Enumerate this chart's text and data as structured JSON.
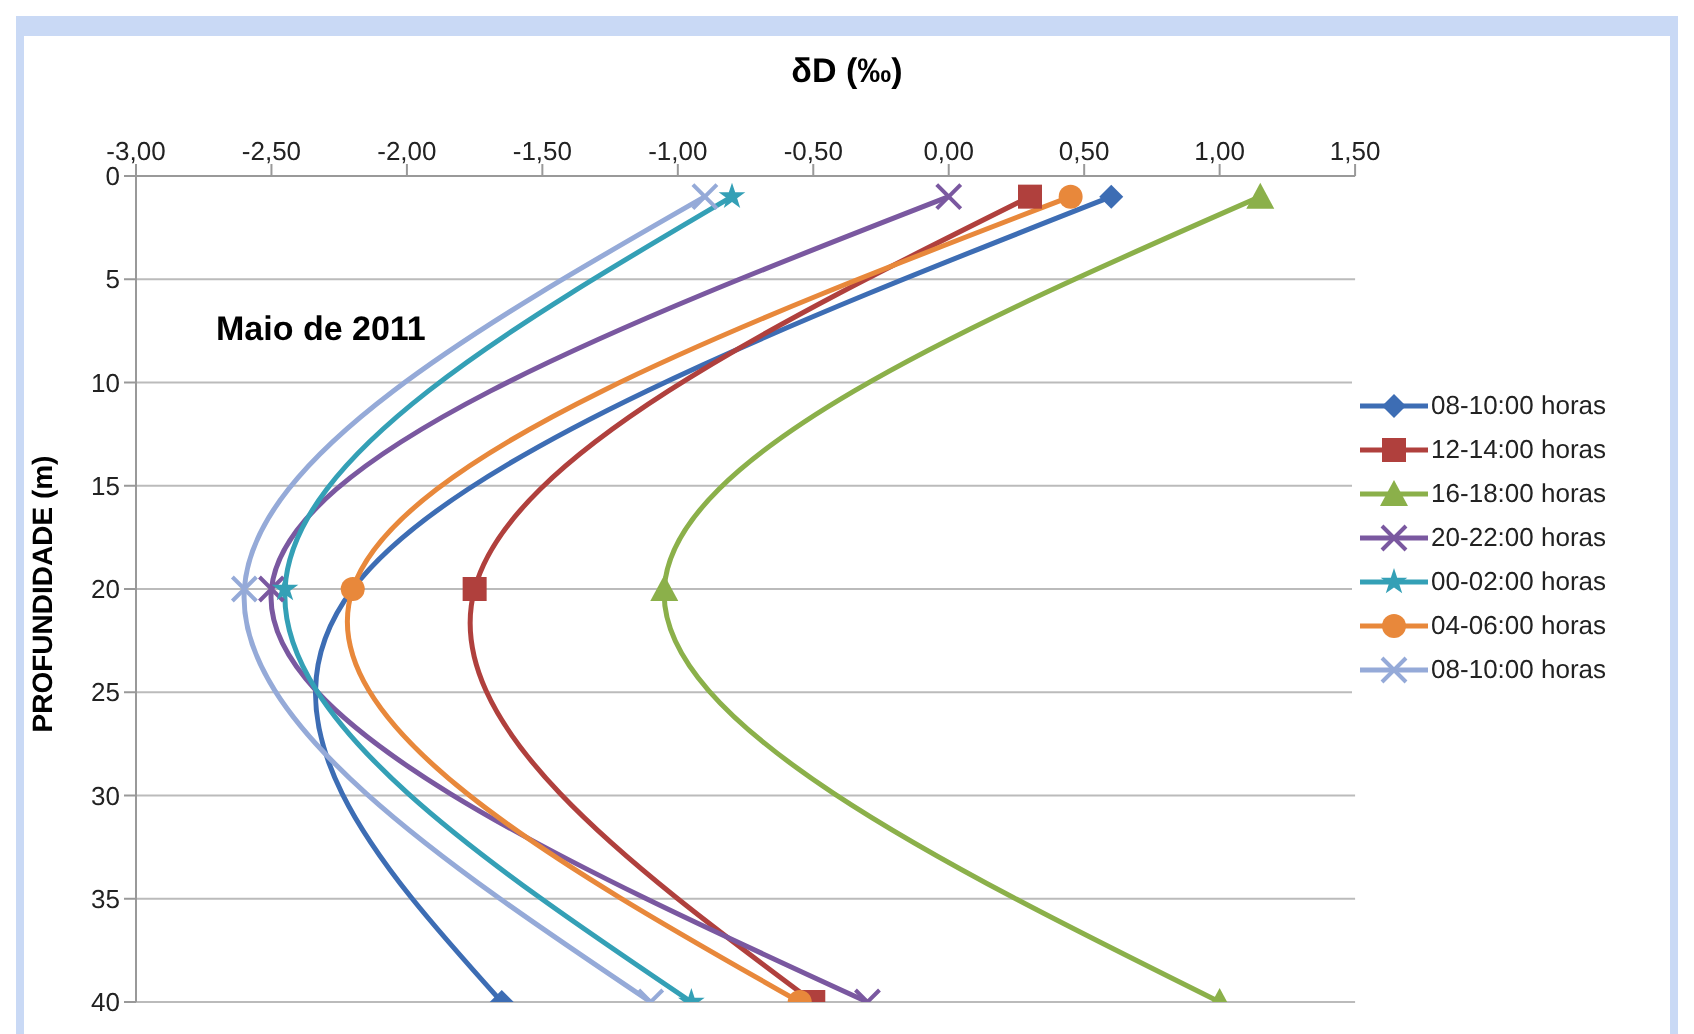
{
  "chart_data": {
    "type": "line",
    "xlabel": "δD (‰)",
    "ylabel": "PROFUNDIDADE (m)",
    "annotations": [
      "Maio de 2011"
    ],
    "series": [
      {
        "name": "08-10:00 horas",
        "color": "#3d6db4",
        "marker": "diamond",
        "x": [
          0.6,
          -2.2,
          -1.65
        ],
        "values": [
          1,
          20,
          40
        ]
      },
      {
        "name": "12-14:00 horas",
        "color": "#b0403d",
        "marker": "square",
        "x": [
          0.3,
          -1.75,
          -0.5
        ],
        "values": [
          1,
          20,
          40
        ]
      },
      {
        "name": "16-18:00 horas",
        "color": "#8bb04a",
        "marker": "triangle",
        "x": [
          1.15,
          -1.05,
          1.0
        ],
        "values": [
          1,
          20,
          40
        ]
      },
      {
        "name": "20-22:00 horas",
        "color": "#7a58a0",
        "marker": "cross",
        "x": [
          0.0,
          -2.5,
          -0.3
        ],
        "values": [
          1,
          20,
          40
        ]
      },
      {
        "name": "00-02:00 horas",
        "color": "#34a0b6",
        "marker": "star",
        "x": [
          -0.8,
          -2.45,
          -0.95
        ],
        "values": [
          1,
          20,
          40
        ]
      },
      {
        "name": "04-06:00 horas",
        "color": "#e8883b",
        "marker": "circle",
        "x": [
          0.45,
          -2.2,
          -0.55
        ],
        "values": [
          1,
          20,
          40
        ]
      },
      {
        "name": "08-10:00 horas",
        "color": "#95aad8",
        "marker": "cross",
        "x": [
          -0.9,
          -2.6,
          -1.1
        ],
        "values": [
          1,
          20,
          40
        ]
      }
    ],
    "xlim": [
      -3,
      1.5
    ],
    "xticks": [
      {
        "value": -3,
        "label": "-3,00"
      },
      {
        "value": -2.5,
        "label": "-2,50"
      },
      {
        "value": -2,
        "label": "-2,00"
      },
      {
        "value": -1.5,
        "label": "-1,50"
      },
      {
        "value": -1,
        "label": "-1,00"
      },
      {
        "value": -0.5,
        "label": "-0,50"
      },
      {
        "value": 0,
        "label": "0,00"
      },
      {
        "value": 0.5,
        "label": "0,50"
      },
      {
        "value": 1,
        "label": "1,00"
      },
      {
        "value": 1.5,
        "label": "1,50"
      }
    ],
    "ylim": [
      40,
      0
    ],
    "yticks": [
      0,
      5,
      10,
      15,
      20,
      25,
      30,
      35,
      40
    ],
    "grid": "y",
    "legend": "right",
    "line_style": "solid"
  }
}
